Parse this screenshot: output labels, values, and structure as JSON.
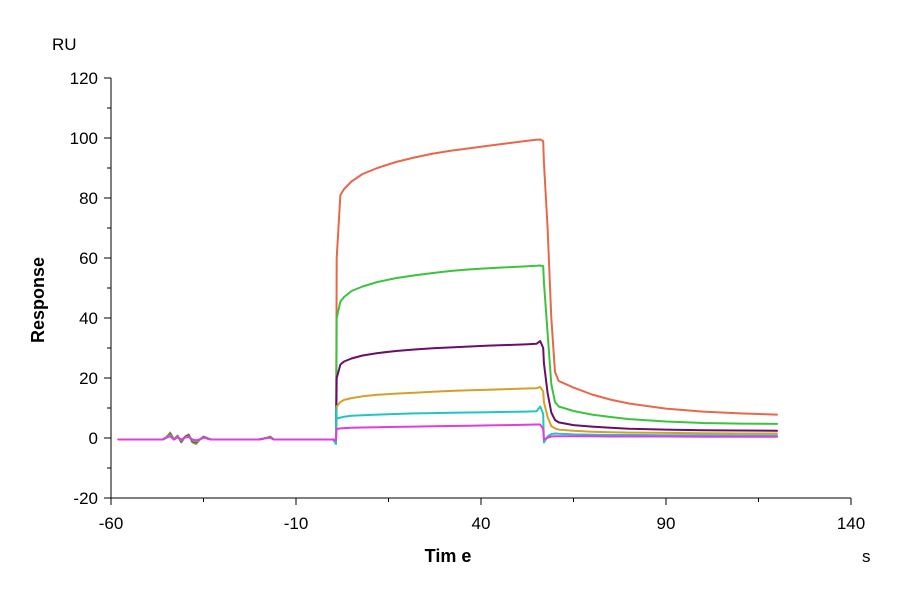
{
  "chart_data": {
    "type": "line",
    "xlabel": "Tim e",
    "ylabel": "Response",
    "x_unit": "s",
    "y_unit": "RU",
    "xlim": [
      -60,
      140
    ],
    "ylim": [
      -20,
      120
    ],
    "x_ticks": [
      -60,
      -10,
      40,
      90,
      140
    ],
    "y_ticks": [
      -20,
      0,
      20,
      40,
      60,
      80,
      100,
      120
    ],
    "grid": false,
    "legend": "none",
    "series": [
      {
        "color": "#e8674a",
        "x": [
          -58,
          -46,
          -45,
          -44,
          -43,
          -42,
          -41,
          -40,
          -39,
          -38,
          -37,
          -36,
          -35,
          -33,
          -20,
          -18,
          -17,
          -16,
          -15,
          0,
          0.8,
          0.9,
          1,
          2,
          3,
          5,
          8,
          12,
          17,
          22,
          27,
          32,
          37,
          42,
          47,
          52,
          55,
          56,
          56.8,
          57,
          58,
          59,
          60,
          61,
          65,
          70,
          75,
          80,
          90,
          100,
          110,
          120
        ],
        "y": [
          -0.5,
          -0.5,
          0.3,
          1.8,
          -0.5,
          0.8,
          -1.5,
          0.5,
          1.2,
          -1.5,
          -2,
          -0.5,
          0.5,
          -0.5,
          -0.5,
          0,
          0.5,
          -0.5,
          -0.5,
          -0.5,
          -0.5,
          20,
          60,
          81,
          83,
          85.5,
          88,
          90,
          92,
          93.5,
          94.8,
          95.8,
          96.6,
          97.4,
          98.2,
          99,
          99.4,
          99.5,
          99,
          92,
          70,
          40,
          22,
          19,
          16.8,
          14.5,
          12.8,
          11.5,
          9.8,
          8.8,
          8.2,
          7.8
        ]
      },
      {
        "color": "#3cc33c",
        "x": [
          -58,
          -46,
          -45,
          -44,
          -43,
          -42,
          -41,
          -40,
          -39,
          -38,
          -37,
          -36,
          -35,
          -33,
          -20,
          -18,
          -17,
          -16,
          -15,
          0,
          0.8,
          0.9,
          1,
          2,
          3,
          5,
          8,
          12,
          17,
          22,
          27,
          32,
          37,
          42,
          47,
          52,
          55,
          56,
          56.8,
          57,
          58,
          59,
          60,
          61,
          65,
          70,
          75,
          80,
          90,
          100,
          110,
          120
        ],
        "y": [
          -0.5,
          -0.5,
          0.3,
          1.5,
          -0.5,
          0.7,
          -1.3,
          0.4,
          1,
          -1.3,
          -1.8,
          -0.5,
          0.4,
          -0.5,
          -0.5,
          0,
          0.4,
          -0.5,
          -0.5,
          -0.5,
          -1,
          15,
          40,
          45.5,
          47,
          49,
          50.5,
          52,
          53.3,
          54.2,
          55,
          55.7,
          56.2,
          56.6,
          56.9,
          57.2,
          57.4,
          57.5,
          57.3,
          52,
          35,
          18,
          12,
          10.5,
          9,
          7.8,
          7,
          6.3,
          5.5,
          5,
          4.8,
          4.7
        ]
      },
      {
        "color": "#6a0e6a",
        "x": [
          -58,
          -46,
          -45,
          -44,
          -43,
          -42,
          -41,
          -40,
          -39,
          -38,
          -37,
          -36,
          -35,
          -33,
          -20,
          -18,
          -17,
          -16,
          -15,
          0,
          0.8,
          0.9,
          1,
          2,
          3,
          5,
          8,
          12,
          17,
          22,
          27,
          32,
          37,
          42,
          47,
          52,
          55,
          56,
          56.8,
          57,
          58,
          59,
          60,
          61,
          65,
          70,
          75,
          80,
          90,
          100,
          110,
          120
        ],
        "y": [
          -0.5,
          -0.5,
          0.2,
          1.2,
          -0.5,
          0.5,
          -1,
          0.3,
          0.8,
          -1,
          -1.4,
          -0.5,
          0.3,
          -0.5,
          -0.5,
          0,
          0.3,
          -0.5,
          -0.5,
          -0.5,
          -1.5,
          8,
          20,
          24.5,
          25.5,
          26.5,
          27.5,
          28.3,
          29,
          29.5,
          29.9,
          30.2,
          30.5,
          30.8,
          31,
          31.2,
          31.4,
          32.3,
          30,
          25,
          15,
          8.5,
          6,
          5.2,
          4.3,
          3.8,
          3.4,
          3.1,
          2.8,
          2.6,
          2.5,
          2.4
        ]
      },
      {
        "color": "#d4a02a",
        "x": [
          -58,
          -46,
          -45,
          -44,
          -43,
          -42,
          -41,
          -40,
          -39,
          -38,
          -37,
          -36,
          -35,
          -33,
          -20,
          -18,
          -17,
          -16,
          -15,
          0,
          0.8,
          0.9,
          1,
          2,
          3,
          5,
          8,
          12,
          17,
          22,
          27,
          32,
          37,
          42,
          47,
          52,
          55,
          56,
          56.8,
          57,
          58,
          59,
          60,
          61,
          65,
          70,
          75,
          80,
          90,
          100,
          110,
          120
        ],
        "y": [
          -0.5,
          -0.5,
          0.2,
          1,
          -0.5,
          0.4,
          -0.8,
          0.2,
          0.6,
          -0.8,
          -1.2,
          -0.5,
          0.2,
          -0.5,
          -0.5,
          0,
          0.2,
          -0.5,
          -0.5,
          -0.5,
          -1.5,
          5,
          10.5,
          12,
          12.7,
          13.3,
          13.9,
          14.4,
          14.8,
          15.1,
          15.4,
          15.7,
          15.9,
          16.1,
          16.3,
          16.5,
          16.6,
          17,
          15.5,
          12,
          7,
          4,
          3.2,
          2.8,
          2.4,
          2.1,
          1.9,
          1.8,
          1.7,
          1.6,
          1.5,
          1.5
        ]
      },
      {
        "color": "#22c4c4",
        "x": [
          -58,
          -46,
          -45,
          -44,
          -43,
          -42,
          -41,
          -40,
          -39,
          -38,
          -37,
          -36,
          -35,
          -33,
          -20,
          -18,
          -17,
          -16,
          -15,
          0,
          0.8,
          0.9,
          1,
          2,
          3,
          5,
          8,
          12,
          17,
          22,
          27,
          32,
          37,
          42,
          47,
          52,
          55,
          56,
          56.8,
          57,
          58,
          59,
          60,
          61,
          65,
          70,
          75,
          80,
          90,
          100,
          110,
          120
        ],
        "y": [
          -0.5,
          -0.5,
          0.2,
          0.8,
          -0.5,
          0.3,
          -0.6,
          0.2,
          0.5,
          -0.6,
          -1,
          -0.5,
          0.2,
          -0.5,
          -0.5,
          0,
          0.2,
          -0.5,
          -0.5,
          -0.5,
          -2,
          10,
          6.5,
          6.8,
          7.1,
          7.4,
          7.6,
          7.8,
          8,
          8.2,
          8.3,
          8.4,
          8.5,
          8.6,
          8.7,
          8.8,
          8.9,
          10.5,
          8,
          -1.5,
          0.5,
          1.3,
          1.5,
          1.4,
          1.2,
          1.1,
          1,
          1,
          0.9,
          0.9,
          0.8,
          0.8
        ]
      },
      {
        "color": "#e03ce0",
        "x": [
          -58,
          -46,
          -45,
          -44,
          -43,
          -42,
          -41,
          -40,
          -39,
          -38,
          -37,
          -36,
          -35,
          -33,
          -20,
          -18,
          -17,
          -16,
          -15,
          0,
          0.8,
          0.9,
          1,
          2,
          3,
          5,
          8,
          12,
          17,
          22,
          27,
          32,
          37,
          42,
          47,
          52,
          55,
          56,
          56.8,
          57,
          58,
          59,
          60,
          61,
          65,
          70,
          75,
          80,
          90,
          100,
          110,
          120
        ],
        "y": [
          -0.5,
          -0.5,
          0.1,
          0.6,
          -0.5,
          0.2,
          -0.5,
          0.1,
          0.4,
          -0.5,
          -0.8,
          -0.5,
          0.1,
          -0.5,
          -0.5,
          0,
          0.1,
          -0.5,
          -0.5,
          -0.5,
          -0.8,
          2,
          3,
          3.2,
          3.3,
          3.4,
          3.5,
          3.6,
          3.7,
          3.8,
          3.9,
          4,
          4.1,
          4.2,
          4.3,
          4.4,
          4.5,
          4.5,
          3,
          -0.5,
          0.1,
          0.5,
          0.6,
          0.6,
          0.6,
          0.6,
          0.5,
          0.5,
          0.5,
          0.4,
          0.4,
          0.4
        ]
      }
    ]
  }
}
